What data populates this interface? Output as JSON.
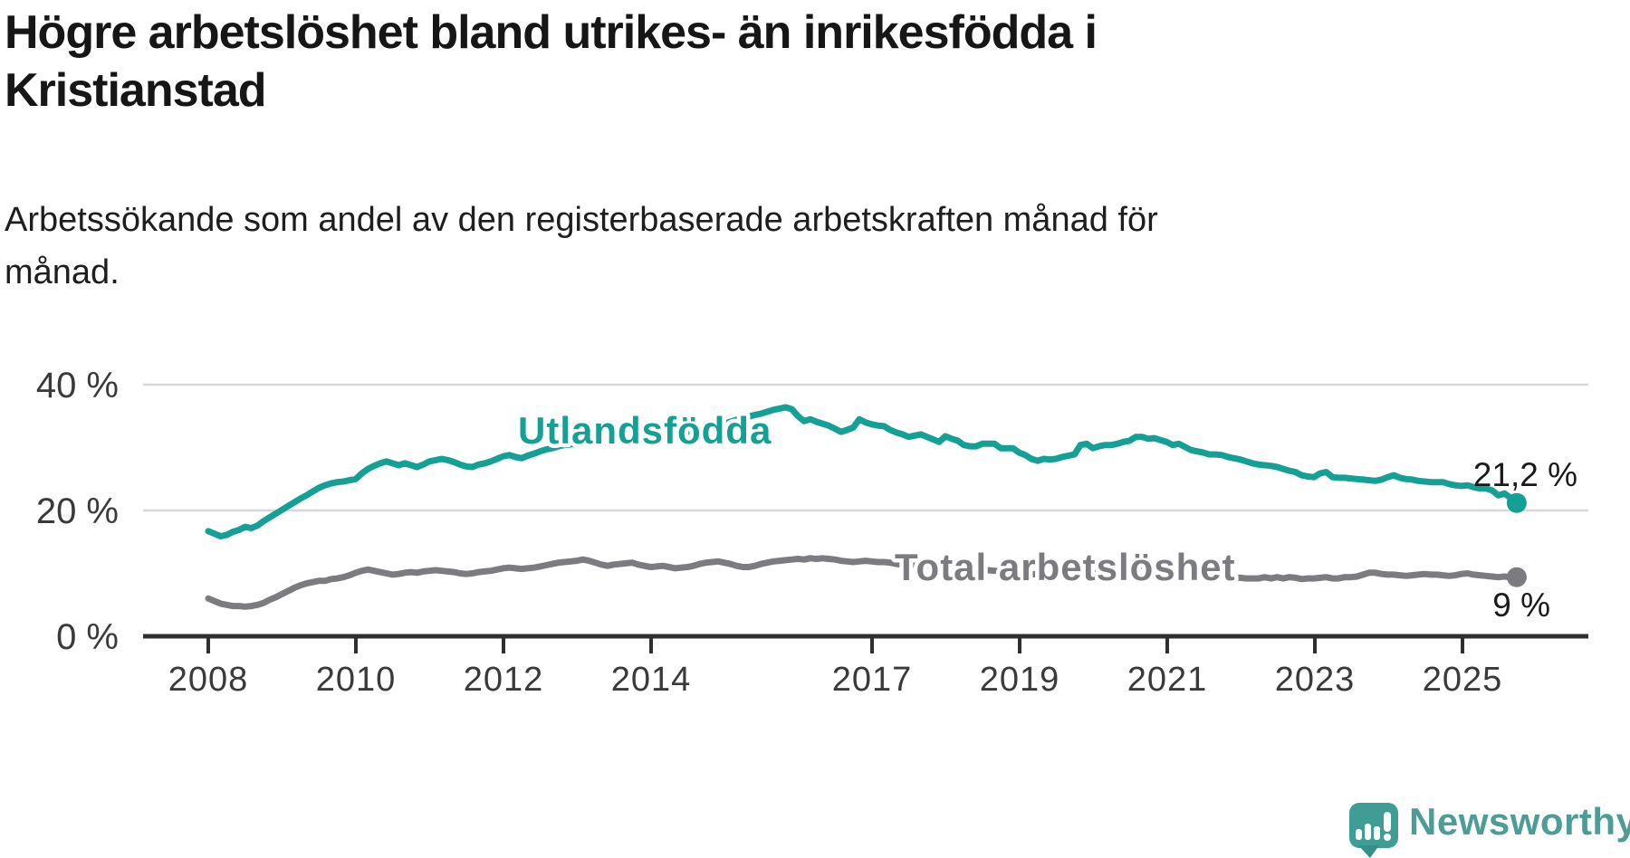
{
  "title": {
    "line1": "Högre arbetslöshet bland utrikes- än inrikesfödda i",
    "line2": "Kristianstad",
    "full": "Högre arbetslöshet bland utrikes- än inrikesfödda i Kristianstad"
  },
  "subtitle": {
    "line1": "Arbetssökande som andel av den registerbaserade arbetskraften månad för",
    "line2": "månad.",
    "full": "Arbetssökande som andel av den registerbaserade arbetskraften månad för månad."
  },
  "branding": {
    "name": "Newsworthy",
    "logo_color": "#3f9d96",
    "text_color": "#4e9c96"
  },
  "chart_data": {
    "type": "line",
    "title": "Högre arbetslöshet bland utrikes- än inrikesfödda i Kristianstad",
    "frequency": "monthly",
    "x_start": "2008-01",
    "x_end": "2025-10",
    "ylim": [
      0,
      44
    ],
    "grid": "horizontal",
    "legend_position": "inline-labels",
    "y_ticks": [
      {
        "label": "40 %",
        "value": 40
      },
      {
        "label": "20 %",
        "value": 20
      },
      {
        "label": "0 %",
        "value": 0
      }
    ],
    "x_ticks": [
      {
        "label": "2008",
        "year": 2008
      },
      {
        "label": "2010",
        "year": 2010
      },
      {
        "label": "2012",
        "year": 2012
      },
      {
        "label": "2014",
        "year": 2014
      },
      {
        "label": "2017",
        "year": 2017
      },
      {
        "label": "2019",
        "year": 2019
      },
      {
        "label": "2021",
        "year": 2021
      },
      {
        "label": "2023",
        "year": 2023
      },
      {
        "label": "2025",
        "year": 2025
      }
    ],
    "series": [
      {
        "name": "Utlandsfödda",
        "color": "#14a094",
        "end_label": "21,2 %",
        "end_value": 21.2,
        "values": [
          16.7,
          16.3,
          15.9,
          16.1,
          16.6,
          16.9,
          17.4,
          17.2,
          17.6,
          18.3,
          18.9,
          19.5,
          20.1,
          20.7,
          21.3,
          21.9,
          22.4,
          23.0,
          23.6,
          24.0,
          24.3,
          24.5,
          24.6,
          24.8,
          25.0,
          25.9,
          26.6,
          27.1,
          27.5,
          27.8,
          27.5,
          27.2,
          27.5,
          27.2,
          26.9,
          27.3,
          27.8,
          28.0,
          28.2,
          28.0,
          27.7,
          27.3,
          27.0,
          26.9,
          27.3,
          27.5,
          27.8,
          28.2,
          28.6,
          28.8,
          28.5,
          28.3,
          28.7,
          29.0,
          29.4,
          29.7,
          29.9,
          30.2,
          30.4,
          30.5,
          30.6,
          30.8,
          31.0,
          30.8,
          30.7,
          30.9,
          31.2,
          31.4,
          31.5,
          31.7,
          31.8,
          31.9,
          32.0,
          32.2,
          32.1,
          31.9,
          32.0,
          32.3,
          32.5,
          32.8,
          33.0,
          33.2,
          33.4,
          33.6,
          33.8,
          34.1,
          34.4,
          34.7,
          34.9,
          35.2,
          35.4,
          35.7,
          36.0,
          36.2,
          36.4,
          36.1,
          35.0,
          34.2,
          34.5,
          34.1,
          33.8,
          33.5,
          33.0,
          32.5,
          32.8,
          33.2,
          34.5,
          34.0,
          33.7,
          33.5,
          33.4,
          32.8,
          32.4,
          32.1,
          31.7,
          31.9,
          32.1,
          31.7,
          31.3,
          30.9,
          31.8,
          31.4,
          31.1,
          30.4,
          30.2,
          30.2,
          30.6,
          30.6,
          30.6,
          29.9,
          29.9,
          29.9,
          29.2,
          28.8,
          28.2,
          27.9,
          28.2,
          28.1,
          28.2,
          28.5,
          28.7,
          28.9,
          30.4,
          30.6,
          29.9,
          30.2,
          30.4,
          30.4,
          30.6,
          30.9,
          31.1,
          31.7,
          31.7,
          31.4,
          31.5,
          31.2,
          30.9,
          30.4,
          30.6,
          30.1,
          29.6,
          29.4,
          29.2,
          28.9,
          28.9,
          28.8,
          28.5,
          28.3,
          28.1,
          27.8,
          27.5,
          27.3,
          27.2,
          27.1,
          26.9,
          26.6,
          26.3,
          26.1,
          25.6,
          25.4,
          25.3,
          25.9,
          26.1,
          25.3,
          25.2,
          25.2,
          25.1,
          25.0,
          24.9,
          24.8,
          24.7,
          24.9,
          25.3,
          25.6,
          25.2,
          25.0,
          24.9,
          24.7,
          24.6,
          24.5,
          24.5,
          24.5,
          24.2,
          24.0,
          23.9,
          24.0,
          23.7,
          23.5,
          23.5,
          23.2,
          22.4,
          22.7,
          22.0,
          21.2
        ]
      },
      {
        "name": "Total arbetslöshet",
        "color": "#7c7b80",
        "end_label": "9 %",
        "end_value": 9.4,
        "values": [
          6.0,
          5.6,
          5.2,
          5.0,
          4.8,
          4.8,
          4.7,
          4.8,
          5.0,
          5.3,
          5.8,
          6.2,
          6.7,
          7.2,
          7.7,
          8.1,
          8.4,
          8.6,
          8.8,
          8.8,
          9.1,
          9.2,
          9.4,
          9.7,
          10.1,
          10.4,
          10.6,
          10.4,
          10.2,
          10.0,
          9.8,
          9.9,
          10.1,
          10.2,
          10.1,
          10.3,
          10.4,
          10.5,
          10.4,
          10.3,
          10.2,
          10.0,
          9.9,
          10.0,
          10.2,
          10.3,
          10.4,
          10.6,
          10.8,
          10.9,
          10.8,
          10.7,
          10.8,
          10.9,
          11.1,
          11.3,
          11.5,
          11.7,
          11.8,
          11.9,
          12.0,
          12.2,
          12.0,
          11.7,
          11.4,
          11.2,
          11.4,
          11.5,
          11.6,
          11.7,
          11.4,
          11.2,
          11.0,
          11.1,
          11.2,
          11.0,
          10.8,
          10.9,
          11.0,
          11.2,
          11.5,
          11.7,
          11.8,
          11.9,
          11.7,
          11.5,
          11.2,
          11.0,
          11.0,
          11.2,
          11.5,
          11.7,
          11.9,
          12.0,
          12.1,
          12.2,
          12.3,
          12.2,
          12.4,
          12.3,
          12.4,
          12.3,
          12.2,
          12.0,
          11.9,
          11.8,
          11.9,
          12.0,
          11.9,
          11.8,
          11.8,
          11.7,
          11.5,
          11.4,
          11.3,
          11.4,
          11.5,
          11.4,
          11.2,
          11.1,
          11.0,
          10.9,
          10.8,
          10.6,
          10.5,
          10.4,
          10.4,
          10.5,
          10.4,
          10.3,
          10.2,
          10.2,
          10.1,
          10.0,
          9.9,
          9.8,
          9.9,
          9.9,
          10.0,
          10.1,
          10.2,
          10.3,
          10.5,
          10.6,
          10.7,
          10.8,
          11.0,
          11.3,
          11.5,
          11.6,
          11.5,
          11.4,
          11.2,
          11.0,
          10.9,
          10.8,
          10.7,
          10.6,
          10.5,
          10.3,
          10.1,
          9.9,
          9.8,
          9.7,
          9.6,
          9.5,
          9.4,
          9.3,
          9.3,
          9.2,
          9.2,
          9.2,
          9.4,
          9.2,
          9.4,
          9.2,
          9.4,
          9.3,
          9.1,
          9.2,
          9.2,
          9.3,
          9.4,
          9.2,
          9.2,
          9.4,
          9.4,
          9.5,
          9.8,
          10.1,
          10.1,
          9.9,
          9.8,
          9.8,
          9.7,
          9.6,
          9.7,
          9.8,
          9.9,
          9.8,
          9.8,
          9.7,
          9.6,
          9.7,
          9.9,
          10.0,
          9.8,
          9.7,
          9.6,
          9.5,
          9.4,
          9.5,
          9.4,
          9.4
        ]
      }
    ]
  }
}
